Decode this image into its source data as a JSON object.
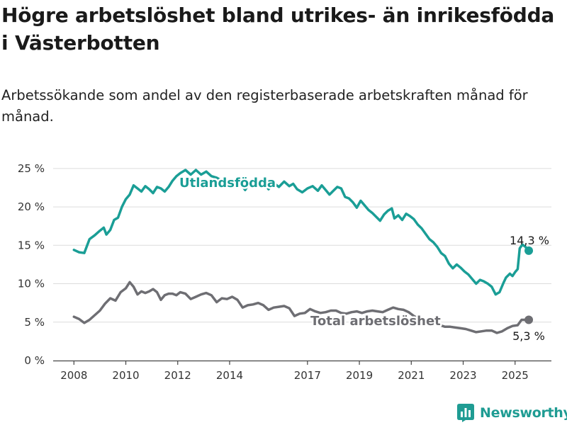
{
  "title": "Högre arbetslöshet bland utrikes- än inrikesfödda i Västerbotten",
  "subtitle": "Arbetssökande som andel av den registerbaserade arbetskraften månad för månad.",
  "brand": {
    "name": "Newsworthy",
    "icon": "bar-chart-logo-icon"
  },
  "colors": {
    "utlandsfodda": "#1a9e96",
    "total": "#6e6e73",
    "grid": "#dcdcdc",
    "axis": "#444444"
  },
  "chart_data": {
    "type": "line",
    "x_unit": "year",
    "x_ticks": [
      2008,
      2010,
      2012,
      2014,
      2017,
      2019,
      2021,
      2023,
      2025
    ],
    "x_tick_labels": [
      "2008",
      "2010",
      "2012",
      "2014",
      "2017",
      "2019",
      "2021",
      "2023",
      "2025"
    ],
    "xlim": [
      2007.2,
      2026.4
    ],
    "ylim": [
      0,
      26
    ],
    "y_ticks": [
      0,
      5,
      10,
      15,
      20,
      25
    ],
    "y_tick_labels": [
      "0 %",
      "5 %",
      "10 %",
      "15 %",
      "20 %",
      "25 %"
    ],
    "grid": true,
    "legend": "inline labels",
    "series": [
      {
        "key": "utlandsfodda",
        "name": "Utlandsfödda",
        "end_label": "14,3 %",
        "points": [
          [
            2008.0,
            14.4
          ],
          [
            2008.2,
            14.1
          ],
          [
            2008.4,
            14.0
          ],
          [
            2008.6,
            15.8
          ],
          [
            2008.8,
            16.3
          ],
          [
            2009.0,
            16.9
          ],
          [
            2009.15,
            17.3
          ],
          [
            2009.25,
            16.4
          ],
          [
            2009.4,
            17.0
          ],
          [
            2009.55,
            18.3
          ],
          [
            2009.7,
            18.6
          ],
          [
            2009.85,
            20.0
          ],
          [
            2010.0,
            21.0
          ],
          [
            2010.15,
            21.6
          ],
          [
            2010.3,
            22.8
          ],
          [
            2010.45,
            22.4
          ],
          [
            2010.6,
            22.0
          ],
          [
            2010.75,
            22.7
          ],
          [
            2010.9,
            22.3
          ],
          [
            2011.05,
            21.8
          ],
          [
            2011.2,
            22.6
          ],
          [
            2011.35,
            22.4
          ],
          [
            2011.5,
            22.0
          ],
          [
            2011.65,
            22.6
          ],
          [
            2011.8,
            23.4
          ],
          [
            2011.95,
            24.0
          ],
          [
            2012.1,
            24.4
          ],
          [
            2012.3,
            24.8
          ],
          [
            2012.5,
            24.2
          ],
          [
            2012.7,
            24.8
          ],
          [
            2012.9,
            24.2
          ],
          [
            2013.1,
            24.6
          ],
          [
            2013.3,
            24.0
          ],
          [
            2013.5,
            23.8
          ],
          [
            2013.7,
            23.4
          ],
          [
            2013.9,
            23.2
          ],
          [
            2014.0,
            23.0
          ],
          [
            2014.15,
            22.6
          ],
          [
            2014.3,
            23.4
          ],
          [
            2014.45,
            22.9
          ],
          [
            2014.6,
            22.2
          ],
          [
            2014.75,
            23.0
          ],
          [
            2014.9,
            23.2
          ],
          [
            2015.05,
            22.7
          ],
          [
            2015.2,
            23.3
          ],
          [
            2015.35,
            23.0
          ],
          [
            2015.5,
            22.3
          ],
          [
            2015.7,
            23.1
          ],
          [
            2015.9,
            22.6
          ],
          [
            2016.1,
            23.3
          ],
          [
            2016.3,
            22.7
          ],
          [
            2016.45,
            23.0
          ],
          [
            2016.6,
            22.3
          ],
          [
            2016.8,
            21.9
          ],
          [
            2017.0,
            22.4
          ],
          [
            2017.2,
            22.7
          ],
          [
            2017.4,
            22.1
          ],
          [
            2017.55,
            22.8
          ],
          [
            2017.7,
            22.2
          ],
          [
            2017.85,
            21.6
          ],
          [
            2018.0,
            22.1
          ],
          [
            2018.15,
            22.6
          ],
          [
            2018.3,
            22.4
          ],
          [
            2018.45,
            21.3
          ],
          [
            2018.6,
            21.1
          ],
          [
            2018.75,
            20.6
          ],
          [
            2018.9,
            19.9
          ],
          [
            2019.05,
            20.8
          ],
          [
            2019.2,
            20.2
          ],
          [
            2019.35,
            19.6
          ],
          [
            2019.5,
            19.2
          ],
          [
            2019.65,
            18.7
          ],
          [
            2019.8,
            18.2
          ],
          [
            2019.95,
            19.0
          ],
          [
            2020.1,
            19.5
          ],
          [
            2020.25,
            19.8
          ],
          [
            2020.35,
            18.5
          ],
          [
            2020.5,
            18.9
          ],
          [
            2020.65,
            18.3
          ],
          [
            2020.8,
            19.1
          ],
          [
            2020.95,
            18.8
          ],
          [
            2021.1,
            18.4
          ],
          [
            2021.25,
            17.7
          ],
          [
            2021.4,
            17.2
          ],
          [
            2021.55,
            16.5
          ],
          [
            2021.7,
            15.8
          ],
          [
            2021.85,
            15.4
          ],
          [
            2022.0,
            14.8
          ],
          [
            2022.15,
            14.0
          ],
          [
            2022.3,
            13.6
          ],
          [
            2022.45,
            12.6
          ],
          [
            2022.6,
            12.0
          ],
          [
            2022.75,
            12.5
          ],
          [
            2022.9,
            12.1
          ],
          [
            2023.05,
            11.6
          ],
          [
            2023.2,
            11.2
          ],
          [
            2023.35,
            10.6
          ],
          [
            2023.5,
            10.0
          ],
          [
            2023.65,
            10.5
          ],
          [
            2023.8,
            10.3
          ],
          [
            2023.95,
            10.0
          ],
          [
            2024.1,
            9.6
          ],
          [
            2024.25,
            8.6
          ],
          [
            2024.4,
            8.9
          ],
          [
            2024.55,
            10.1
          ],
          [
            2024.65,
            10.8
          ],
          [
            2024.8,
            11.3
          ],
          [
            2024.9,
            11.0
          ],
          [
            2025.0,
            11.5
          ],
          [
            2025.1,
            11.9
          ],
          [
            2025.18,
            14.6
          ],
          [
            2025.28,
            15.1
          ],
          [
            2025.4,
            14.8
          ],
          [
            2025.5,
            14.3
          ]
        ]
      },
      {
        "key": "total",
        "name": "Total arbetslöshet",
        "end_label": "5,3 %",
        "points": [
          [
            2008.0,
            5.7
          ],
          [
            2008.2,
            5.4
          ],
          [
            2008.4,
            4.9
          ],
          [
            2008.6,
            5.3
          ],
          [
            2008.8,
            5.9
          ],
          [
            2009.0,
            6.5
          ],
          [
            2009.2,
            7.4
          ],
          [
            2009.4,
            8.1
          ],
          [
            2009.6,
            7.8
          ],
          [
            2009.8,
            8.9
          ],
          [
            2010.0,
            9.4
          ],
          [
            2010.15,
            10.2
          ],
          [
            2010.3,
            9.6
          ],
          [
            2010.45,
            8.6
          ],
          [
            2010.6,
            9.0
          ],
          [
            2010.75,
            8.8
          ],
          [
            2010.9,
            9.0
          ],
          [
            2011.05,
            9.3
          ],
          [
            2011.2,
            8.9
          ],
          [
            2011.35,
            7.9
          ],
          [
            2011.5,
            8.5
          ],
          [
            2011.65,
            8.7
          ],
          [
            2011.8,
            8.7
          ],
          [
            2011.95,
            8.5
          ],
          [
            2012.1,
            8.9
          ],
          [
            2012.3,
            8.7
          ],
          [
            2012.5,
            8.0
          ],
          [
            2012.7,
            8.3
          ],
          [
            2012.9,
            8.6
          ],
          [
            2013.1,
            8.8
          ],
          [
            2013.3,
            8.5
          ],
          [
            2013.5,
            7.6
          ],
          [
            2013.7,
            8.1
          ],
          [
            2013.9,
            8.0
          ],
          [
            2014.1,
            8.3
          ],
          [
            2014.3,
            7.9
          ],
          [
            2014.5,
            6.9
          ],
          [
            2014.7,
            7.2
          ],
          [
            2014.9,
            7.3
          ],
          [
            2015.1,
            7.5
          ],
          [
            2015.3,
            7.2
          ],
          [
            2015.5,
            6.6
          ],
          [
            2015.7,
            6.9
          ],
          [
            2015.9,
            7.0
          ],
          [
            2016.1,
            7.1
          ],
          [
            2016.3,
            6.8
          ],
          [
            2016.5,
            5.8
          ],
          [
            2016.7,
            6.1
          ],
          [
            2016.9,
            6.2
          ],
          [
            2017.1,
            6.7
          ],
          [
            2017.3,
            6.4
          ],
          [
            2017.5,
            6.2
          ],
          [
            2017.7,
            6.3
          ],
          [
            2017.9,
            6.5
          ],
          [
            2018.1,
            6.5
          ],
          [
            2018.3,
            6.2
          ],
          [
            2018.5,
            6.1
          ],
          [
            2018.7,
            6.3
          ],
          [
            2018.9,
            6.4
          ],
          [
            2019.1,
            6.2
          ],
          [
            2019.3,
            6.4
          ],
          [
            2019.5,
            6.5
          ],
          [
            2019.7,
            6.4
          ],
          [
            2019.9,
            6.3
          ],
          [
            2020.1,
            6.6
          ],
          [
            2020.3,
            6.9
          ],
          [
            2020.5,
            6.7
          ],
          [
            2020.7,
            6.6
          ],
          [
            2020.9,
            6.3
          ],
          [
            2021.1,
            5.8
          ],
          [
            2021.3,
            5.4
          ],
          [
            2021.5,
            5.0
          ],
          [
            2021.7,
            4.9
          ],
          [
            2021.9,
            4.7
          ],
          [
            2022.1,
            4.6
          ],
          [
            2022.3,
            4.4
          ],
          [
            2022.5,
            4.4
          ],
          [
            2022.7,
            4.3
          ],
          [
            2022.9,
            4.2
          ],
          [
            2023.1,
            4.1
          ],
          [
            2023.3,
            3.9
          ],
          [
            2023.5,
            3.7
          ],
          [
            2023.7,
            3.8
          ],
          [
            2023.9,
            3.9
          ],
          [
            2024.1,
            3.9
          ],
          [
            2024.3,
            3.6
          ],
          [
            2024.5,
            3.8
          ],
          [
            2024.7,
            4.2
          ],
          [
            2024.9,
            4.5
          ],
          [
            2025.1,
            4.6
          ],
          [
            2025.25,
            5.3
          ],
          [
            2025.5,
            5.3
          ]
        ]
      }
    ]
  }
}
